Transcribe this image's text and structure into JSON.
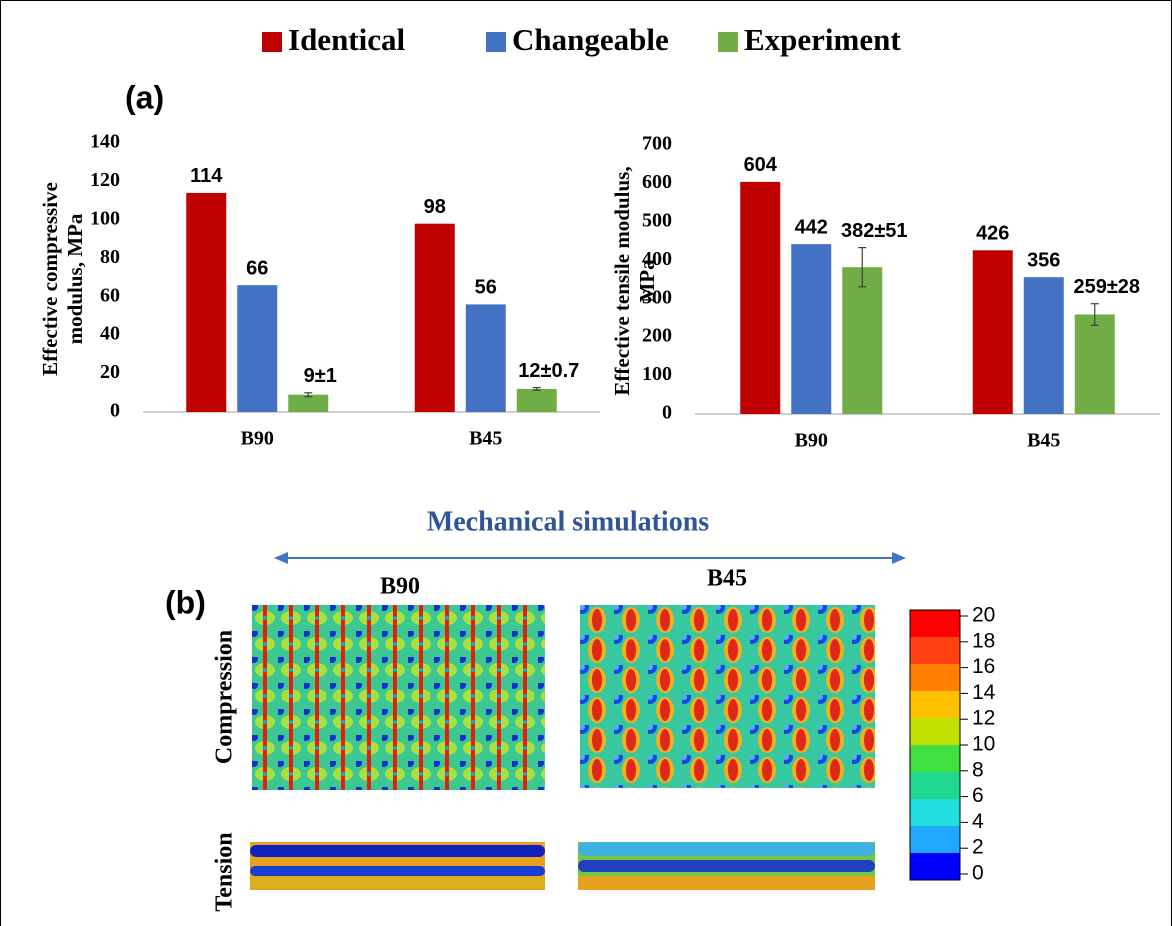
{
  "chart_data": [
    {
      "type": "bar",
      "ylabel": "Effective compressive modulus, MPa",
      "categories": [
        "B90",
        "B45"
      ],
      "series": [
        {
          "name": "Identical",
          "color": "#c00000",
          "values": [
            114,
            98
          ]
        },
        {
          "name": "Changeable",
          "color": "#4472c4",
          "values": [
            66,
            56
          ]
        },
        {
          "name": "Experiment",
          "color": "#70ad47",
          "values": [
            9,
            12
          ],
          "errors": [
            1,
            0.7
          ],
          "value_labels": [
            "9±1",
            "12±0.7"
          ]
        }
      ],
      "ylim": [
        0,
        140
      ],
      "yticks": [
        0,
        20,
        40,
        60,
        80,
        100,
        120,
        140
      ]
    },
    {
      "type": "bar",
      "ylabel": "Effective tensile modulus, MPa",
      "categories": [
        "B90",
        "B45"
      ],
      "series": [
        {
          "name": "Identical",
          "color": "#c00000",
          "values": [
            604,
            426
          ]
        },
        {
          "name": "Changeable",
          "color": "#4472c4",
          "values": [
            442,
            356
          ]
        },
        {
          "name": "Experiment",
          "color": "#70ad47",
          "values": [
            382,
            259
          ],
          "errors": [
            51,
            28
          ],
          "value_labels": [
            "382±51",
            "259±28"
          ]
        }
      ],
      "ylim": [
        0,
        700
      ],
      "yticks": [
        0,
        100,
        200,
        300,
        400,
        500,
        600,
        700
      ]
    }
  ],
  "panel_labels": [
    "(a)",
    "(b)"
  ],
  "simulation": {
    "title": "Mechanical simulations",
    "columns": [
      "B90",
      "B45"
    ],
    "rows": [
      "Compression",
      "Tension"
    ],
    "colorbar_ticks": [
      20,
      18,
      16,
      14,
      12,
      10,
      8,
      6,
      4,
      2,
      0
    ]
  }
}
